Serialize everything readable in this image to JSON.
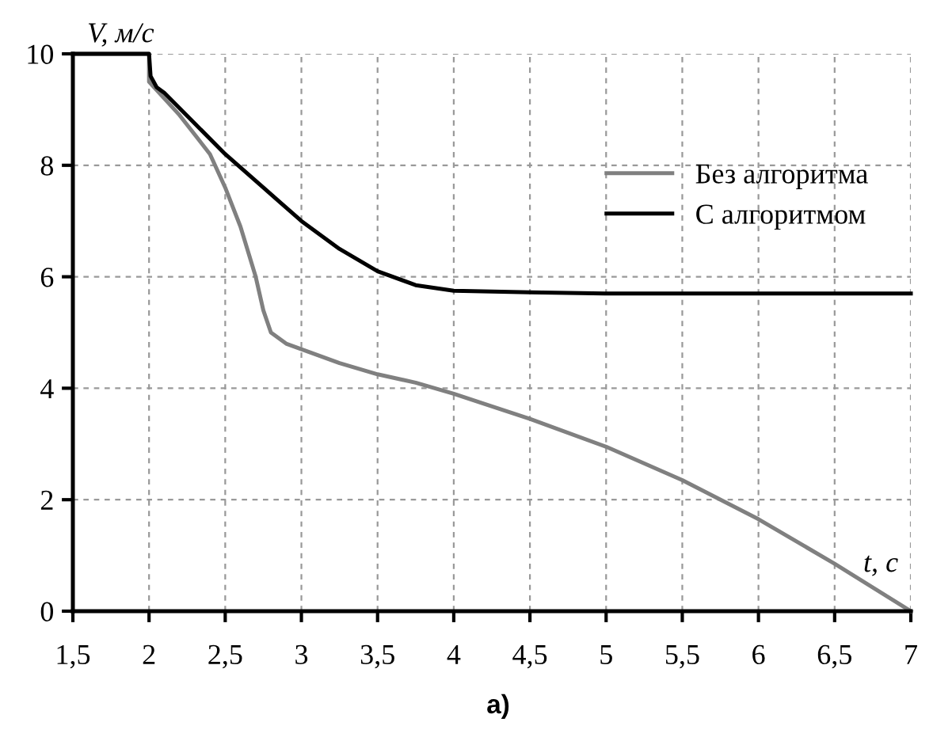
{
  "chart_data": {
    "type": "line",
    "xlabel": "t, с",
    "ylabel": "V, м/с",
    "annotations": [
      "а)"
    ],
    "series": [
      {
        "name": "Без алгоритма",
        "color": "#808080",
        "x": [
          1.5,
          2,
          2.0,
          2.1,
          2.2,
          2.3,
          2.4,
          2.5,
          2.6,
          2.7,
          2.75,
          2.8,
          2.85,
          2.9,
          3,
          3.25,
          3.5,
          3.75,
          4,
          4.5,
          5,
          5.5,
          6,
          6.5,
          7
        ],
        "values": [
          10,
          10,
          9.5,
          9.2,
          8.9,
          8.55,
          8.2,
          7.6,
          6.9,
          6.0,
          5.4,
          5.0,
          4.9,
          4.8,
          4.7,
          4.45,
          4.25,
          4.1,
          3.9,
          3.45,
          2.95,
          2.35,
          1.65,
          0.85,
          0
        ]
      },
      {
        "name": "С алгоритмом",
        "color": "#000000",
        "x": [
          1.5,
          2,
          2.01,
          2.05,
          2.1,
          2.3,
          2.5,
          2.75,
          3,
          3.25,
          3.5,
          3.75,
          4,
          4.5,
          5,
          6,
          7
        ],
        "values": [
          10,
          10,
          9.6,
          9.4,
          9.3,
          8.75,
          8.2,
          7.6,
          7.0,
          6.5,
          6.1,
          5.85,
          5.75,
          5.72,
          5.7,
          5.7,
          5.7
        ]
      }
    ],
    "xlim": [
      1.5,
      7
    ],
    "ylim": [
      0,
      10
    ],
    "xticks": [
      {
        "value": 1.5,
        "label": "1,5"
      },
      2,
      {
        "value": 2.5,
        "label": "2,5"
      },
      3,
      {
        "value": 3.5,
        "label": "3,5"
      },
      4,
      {
        "value": 4.5,
        "label": "4,5"
      },
      5,
      {
        "value": 5.5,
        "label": "5,5"
      },
      6,
      {
        "value": 6.5,
        "label": "6,5"
      },
      7
    ],
    "yticks": [
      0,
      2,
      4,
      6,
      8,
      10
    ],
    "grid": true,
    "legend": "top right",
    "line_style": "solid",
    "marker": "none"
  }
}
